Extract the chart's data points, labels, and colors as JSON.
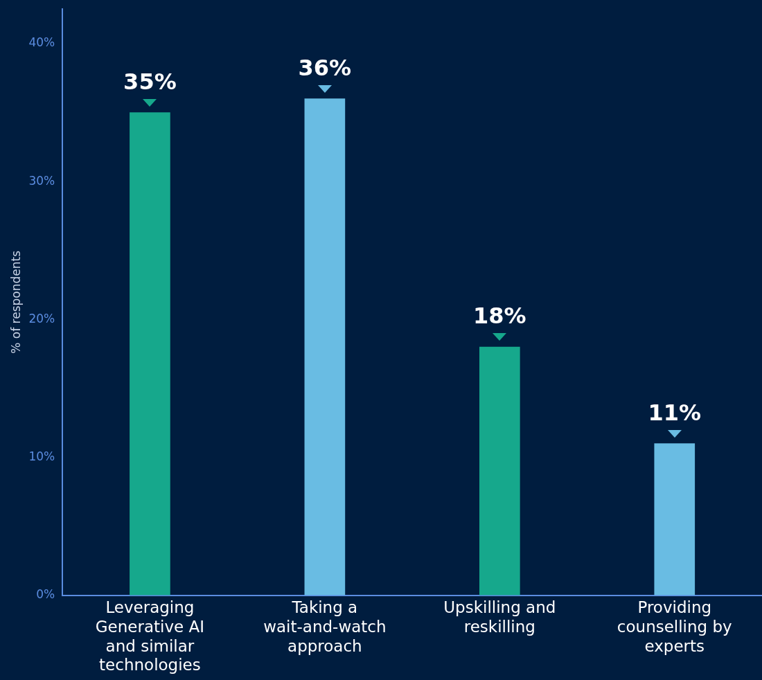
{
  "chart_data": {
    "type": "bar",
    "ylabel": "% of respondents",
    "categories": [
      "Leveraging Generative AI and similar technologies",
      "Taking a wait-and-watch approach",
      "Upskilling and reskilling",
      "Providing counselling by experts"
    ],
    "values": [
      35,
      36,
      18,
      11
    ],
    "colors": [
      "#16a88c",
      "#69bce3",
      "#16a88c",
      "#69bce3"
    ],
    "ylim": [
      0,
      42.5
    ],
    "yticks": [
      {
        "value": 0,
        "label": "0%"
      },
      {
        "value": 10,
        "label": "10%"
      },
      {
        "value": 20,
        "label": "20%"
      },
      {
        "value": 30,
        "label": "30%"
      },
      {
        "value": 40,
        "label": "40%"
      }
    ],
    "value_labels": [
      "35%",
      "36%",
      "18%",
      "11%"
    ],
    "grid": false,
    "legend": false
  }
}
